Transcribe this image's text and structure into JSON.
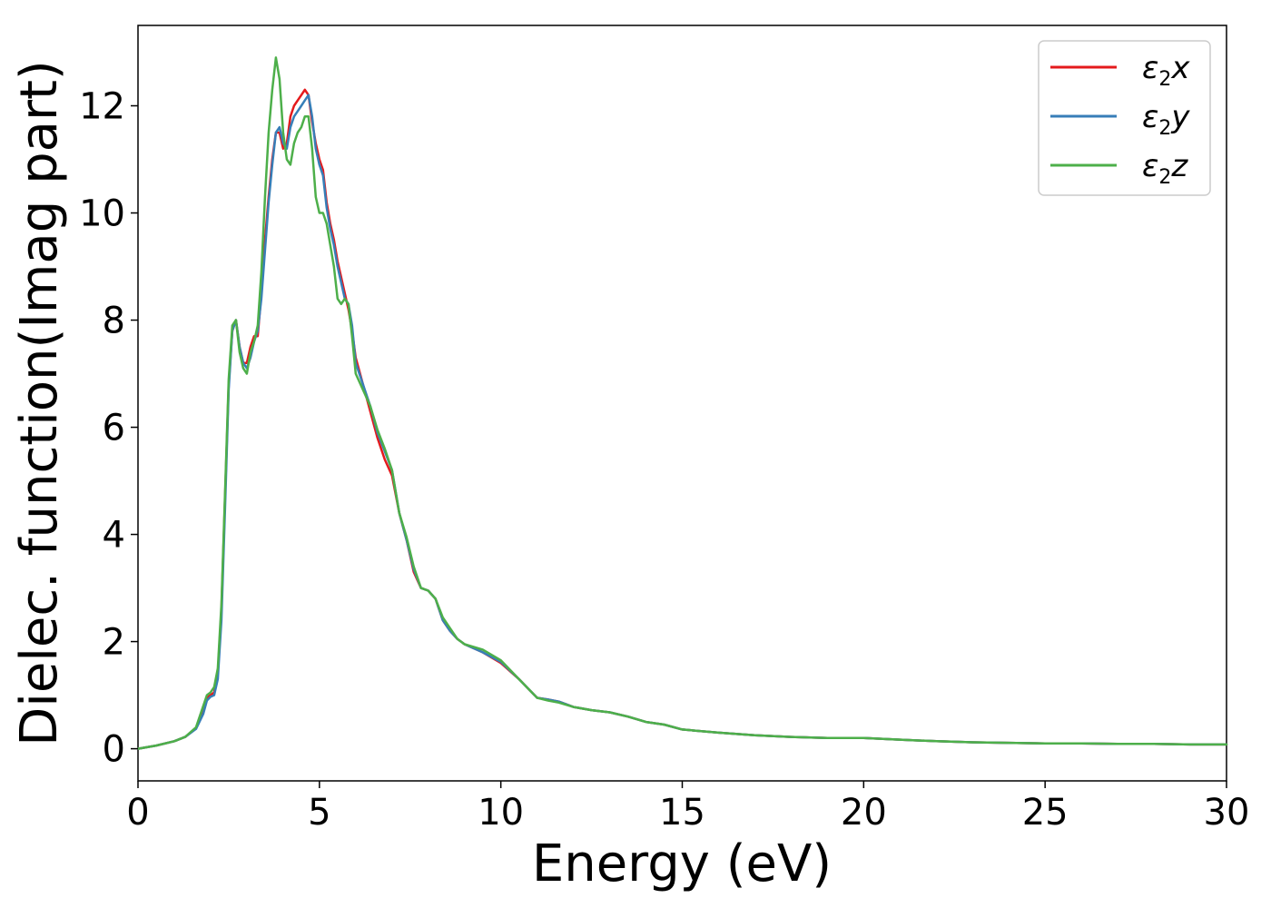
{
  "chart_data": {
    "type": "line",
    "title": "",
    "xlabel": "Energy (eV)",
    "ylabel": "Dielec. function(Imag part)",
    "xlim": [
      0,
      30
    ],
    "ylim": [
      -0.6,
      13.5
    ],
    "xticks": [
      0,
      5,
      10,
      15,
      20,
      25,
      30
    ],
    "yticks": [
      0,
      2,
      4,
      6,
      8,
      10,
      12
    ],
    "grid": false,
    "legend_position": "top-right",
    "series": [
      {
        "name": "ε2x",
        "legend": {
          "base": "ε",
          "sub": "2",
          "suffix": "x"
        },
        "color": "#e41a1c",
        "x": [
          0,
          0.5,
          1.0,
          1.3,
          1.6,
          1.8,
          1.9,
          2.0,
          2.1,
          2.2,
          2.3,
          2.4,
          2.5,
          2.6,
          2.7,
          2.8,
          2.9,
          3.0,
          3.1,
          3.2,
          3.3,
          3.4,
          3.5,
          3.6,
          3.7,
          3.8,
          3.9,
          4.0,
          4.1,
          4.2,
          4.3,
          4.4,
          4.5,
          4.6,
          4.7,
          4.8,
          4.9,
          5.0,
          5.1,
          5.2,
          5.3,
          5.4,
          5.5,
          5.6,
          5.7,
          5.8,
          5.9,
          6.0,
          6.2,
          6.4,
          6.6,
          6.8,
          7.0,
          7.2,
          7.4,
          7.6,
          7.8,
          8.0,
          8.2,
          8.4,
          8.6,
          8.8,
          9.0,
          9.5,
          10.0,
          10.5,
          11.0,
          11.3,
          11.6,
          12.0,
          12.5,
          13.0,
          13.5,
          14.0,
          14.5,
          15.0,
          16.0,
          17.0,
          18.0,
          19.0,
          20.0,
          21.0,
          22.0,
          23.0,
          24.0,
          25.0,
          26.0,
          27.0,
          28.0,
          29.0,
          30.0
        ],
        "values": [
          0,
          0.06,
          0.14,
          0.22,
          0.38,
          0.7,
          0.95,
          1.0,
          1.05,
          1.4,
          2.6,
          4.7,
          6.8,
          7.8,
          8.0,
          7.5,
          7.2,
          7.2,
          7.5,
          7.7,
          7.7,
          8.5,
          9.5,
          10.3,
          11.0,
          11.5,
          11.5,
          11.2,
          11.3,
          11.8,
          12.0,
          12.1,
          12.2,
          12.3,
          12.2,
          11.7,
          11.3,
          11.0,
          10.8,
          10.2,
          9.8,
          9.5,
          9.1,
          8.8,
          8.5,
          8.2,
          7.8,
          7.3,
          6.8,
          6.3,
          5.8,
          5.4,
          5.1,
          4.4,
          3.9,
          3.3,
          3.0,
          2.95,
          2.8,
          2.4,
          2.2,
          2.05,
          1.95,
          1.8,
          1.6,
          1.3,
          0.95,
          0.92,
          0.88,
          0.78,
          0.72,
          0.68,
          0.6,
          0.5,
          0.45,
          0.36,
          0.3,
          0.25,
          0.22,
          0.2,
          0.2,
          0.17,
          0.14,
          0.12,
          0.11,
          0.1,
          0.1,
          0.09,
          0.09,
          0.08,
          0.08
        ]
      },
      {
        "name": "ε2y",
        "legend": {
          "base": "ε",
          "sub": "2",
          "suffix": "y"
        },
        "color": "#377eb8",
        "x": [
          0,
          0.5,
          1.0,
          1.3,
          1.6,
          1.8,
          1.9,
          2.0,
          2.1,
          2.2,
          2.3,
          2.4,
          2.5,
          2.6,
          2.7,
          2.8,
          2.9,
          3.0,
          3.1,
          3.2,
          3.3,
          3.4,
          3.5,
          3.6,
          3.7,
          3.8,
          3.9,
          4.0,
          4.1,
          4.2,
          4.3,
          4.4,
          4.5,
          4.6,
          4.7,
          4.8,
          4.9,
          5.0,
          5.1,
          5.2,
          5.3,
          5.4,
          5.5,
          5.6,
          5.7,
          5.8,
          5.9,
          6.0,
          6.2,
          6.4,
          6.6,
          6.8,
          7.0,
          7.2,
          7.4,
          7.6,
          7.8,
          8.0,
          8.2,
          8.4,
          8.6,
          8.8,
          9.0,
          9.5,
          10.0,
          10.5,
          11.0,
          11.3,
          11.6,
          12.0,
          12.5,
          13.0,
          13.5,
          14.0,
          14.5,
          15.0,
          16.0,
          17.0,
          18.0,
          19.0,
          20.0,
          21.0,
          22.0,
          23.0,
          24.0,
          25.0,
          26.0,
          27.0,
          28.0,
          29.0,
          30.0
        ],
        "values": [
          0,
          0.06,
          0.14,
          0.22,
          0.37,
          0.65,
          0.9,
          0.97,
          1.0,
          1.3,
          2.4,
          4.5,
          6.7,
          7.8,
          8.0,
          7.5,
          7.2,
          7.1,
          7.3,
          7.6,
          7.8,
          8.4,
          9.3,
          10.2,
          10.9,
          11.5,
          11.6,
          11.3,
          11.2,
          11.6,
          11.8,
          11.9,
          12.0,
          12.1,
          12.2,
          11.8,
          11.2,
          10.9,
          10.7,
          10.1,
          9.7,
          9.4,
          9.0,
          8.7,
          8.4,
          8.3,
          7.9,
          7.2,
          6.8,
          6.4,
          5.9,
          5.55,
          5.2,
          4.4,
          3.9,
          3.35,
          3.0,
          2.95,
          2.8,
          2.4,
          2.2,
          2.05,
          1.95,
          1.8,
          1.62,
          1.3,
          0.95,
          0.92,
          0.88,
          0.78,
          0.72,
          0.68,
          0.6,
          0.5,
          0.45,
          0.36,
          0.3,
          0.25,
          0.22,
          0.2,
          0.2,
          0.17,
          0.14,
          0.12,
          0.11,
          0.1,
          0.1,
          0.09,
          0.09,
          0.08,
          0.08
        ]
      },
      {
        "name": "ε2z",
        "legend": {
          "base": "ε",
          "sub": "2",
          "suffix": "z"
        },
        "color": "#4daf4a",
        "x": [
          0,
          0.5,
          1.0,
          1.3,
          1.6,
          1.8,
          1.9,
          2.0,
          2.1,
          2.2,
          2.3,
          2.4,
          2.5,
          2.6,
          2.7,
          2.8,
          2.9,
          3.0,
          3.1,
          3.2,
          3.3,
          3.4,
          3.5,
          3.6,
          3.7,
          3.8,
          3.9,
          4.0,
          4.1,
          4.2,
          4.3,
          4.4,
          4.5,
          4.6,
          4.7,
          4.8,
          4.9,
          5.0,
          5.1,
          5.2,
          5.3,
          5.4,
          5.5,
          5.6,
          5.7,
          5.8,
          5.9,
          6.0,
          6.2,
          6.4,
          6.6,
          6.8,
          7.0,
          7.2,
          7.4,
          7.6,
          7.8,
          8.0,
          8.2,
          8.4,
          8.6,
          8.8,
          9.0,
          9.5,
          10.0,
          10.5,
          11.0,
          11.3,
          11.6,
          12.0,
          12.5,
          13.0,
          13.5,
          14.0,
          14.5,
          15.0,
          16.0,
          17.0,
          18.0,
          19.0,
          20.0,
          21.0,
          22.0,
          23.0,
          24.0,
          25.0,
          26.0,
          27.0,
          28.0,
          29.0,
          30.0
        ],
        "values": [
          0,
          0.06,
          0.14,
          0.22,
          0.4,
          0.8,
          1.0,
          1.05,
          1.15,
          1.5,
          2.7,
          4.8,
          6.9,
          7.9,
          8.0,
          7.4,
          7.1,
          7.0,
          7.4,
          7.6,
          7.9,
          8.9,
          10.3,
          11.5,
          12.3,
          12.9,
          12.5,
          11.5,
          11.0,
          10.9,
          11.3,
          11.5,
          11.6,
          11.8,
          11.8,
          11.2,
          10.3,
          10.0,
          10.0,
          9.8,
          9.4,
          9.0,
          8.4,
          8.3,
          8.4,
          8.3,
          7.7,
          7.0,
          6.7,
          6.4,
          5.95,
          5.6,
          5.2,
          4.4,
          3.95,
          3.4,
          3.0,
          2.95,
          2.8,
          2.45,
          2.25,
          2.05,
          1.95,
          1.85,
          1.65,
          1.3,
          0.95,
          0.9,
          0.86,
          0.78,
          0.72,
          0.68,
          0.6,
          0.5,
          0.45,
          0.36,
          0.3,
          0.25,
          0.22,
          0.2,
          0.2,
          0.17,
          0.14,
          0.12,
          0.11,
          0.1,
          0.1,
          0.09,
          0.09,
          0.08,
          0.08
        ]
      }
    ]
  }
}
